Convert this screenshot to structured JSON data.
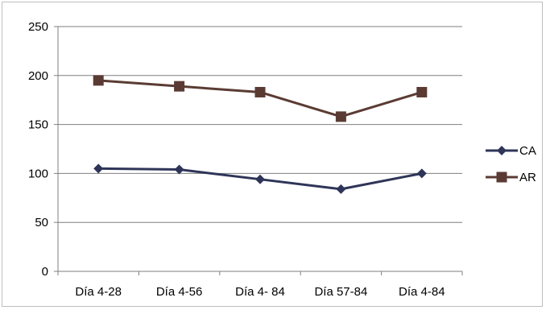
{
  "chart_data": {
    "type": "line",
    "categories": [
      "Día 4-28",
      "Día 4-56",
      "Día 4- 84",
      "Día 57-84",
      "Día 4-84"
    ],
    "ylim": [
      0,
      250
    ],
    "yticks": [
      0,
      50,
      100,
      150,
      200,
      250
    ],
    "grid": true,
    "legend_position": "right",
    "series": [
      {
        "name": "CA",
        "values": [
          105,
          104,
          94,
          84,
          100
        ],
        "color": "#2f3558",
        "marker": "diamond"
      },
      {
        "name": "AR",
        "values": [
          195,
          189,
          183,
          158,
          183
        ],
        "color": "#5a3b33",
        "marker": "square"
      }
    ]
  }
}
